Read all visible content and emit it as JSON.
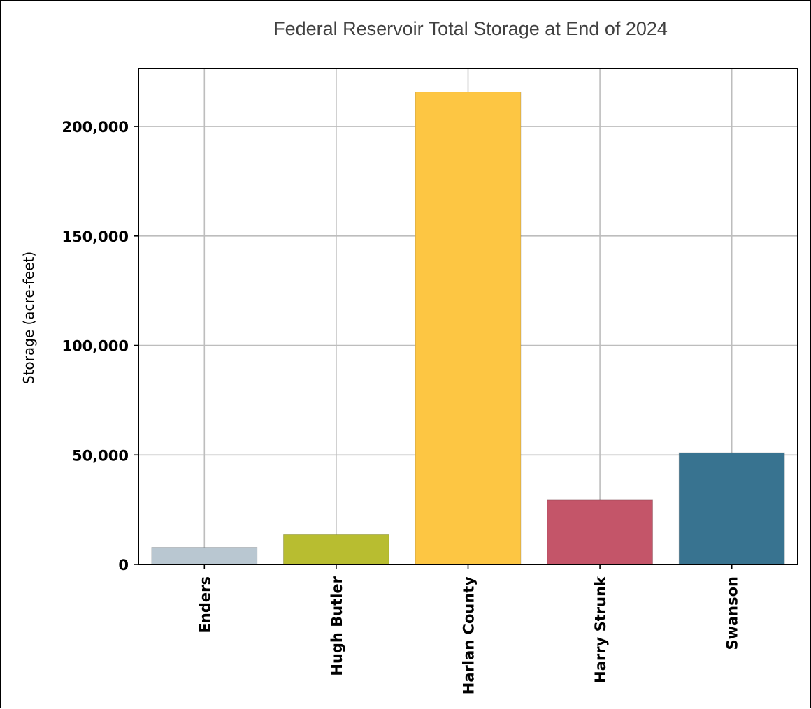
{
  "chart_data": {
    "type": "bar",
    "title": "Federal Reservoir Total Storage at End of 2024",
    "ylabel": "Storage (acre-feet)",
    "xlabel": "",
    "categories": [
      "Enders",
      "Hugh Butler",
      "Harlan County",
      "Harry Strunk",
      "Swanson"
    ],
    "values": [
      7800,
      13600,
      215800,
      29400,
      51000
    ],
    "colors": [
      "#b9c7d1",
      "#b8bd30",
      "#fdc643",
      "#c45569",
      "#387390"
    ],
    "ylim": [
      0,
      226500
    ],
    "yticks": [
      0,
      50000,
      100000,
      150000,
      200000
    ],
    "ytick_labels": [
      "0",
      "50,000",
      "100,000",
      "150,000",
      "200,000"
    ],
    "grid": true,
    "legend": "none"
  }
}
